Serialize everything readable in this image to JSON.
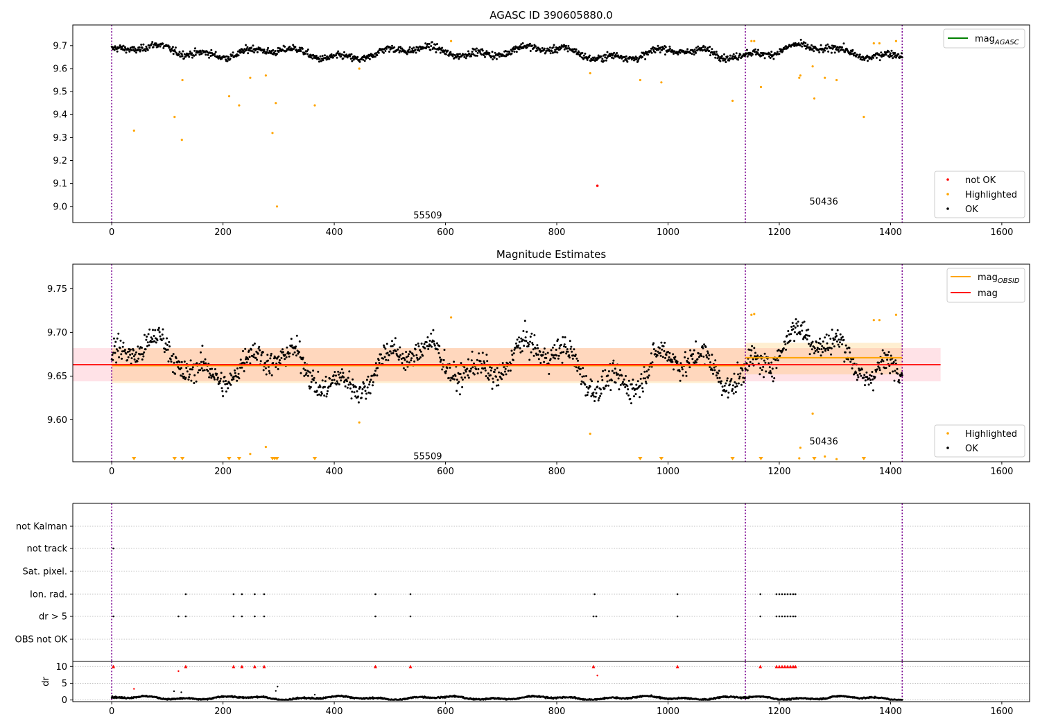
{
  "chart_data": [
    {
      "type": "scatter",
      "title": "AGASC ID 390605880.0",
      "xlim": [
        -70,
        1650
      ],
      "ylim": [
        8.93,
        9.79
      ],
      "x_ticks": [
        "0",
        "200",
        "400",
        "600",
        "800",
        "1000",
        "1200",
        "1400",
        "1600"
      ],
      "y_ticks": [
        {
          "value": 9.7,
          "label": "9.7"
        },
        {
          "value": 9.6,
          "label": "9.6"
        },
        {
          "value": 9.5,
          "label": "9.5"
        },
        {
          "value": 9.4,
          "label": "9.4"
        },
        {
          "value": 9.3,
          "label": "9.3"
        },
        {
          "value": 9.2,
          "label": "9.2"
        },
        {
          "value": 9.1,
          "label": "9.1"
        },
        {
          "value": 9.0,
          "label": "9.0"
        }
      ],
      "vlines": [
        0,
        1139,
        1421
      ],
      "annotations": [
        {
          "text": "55509",
          "x": 568,
          "y": 8.96
        },
        {
          "text": "50436",
          "x": 1280,
          "y": 9.02
        }
      ],
      "legend_top": [
        {
          "label": "mag",
          "sub": "AGASC",
          "color": "#008000"
        }
      ],
      "legend_bottom": [
        {
          "label": "not OK",
          "color": "#ff0000"
        },
        {
          "label": "Highlighted",
          "color": "#ffa500"
        },
        {
          "label": "OK",
          "color": "#000000"
        }
      ],
      "ok_base": 9.67,
      "highlighted": [
        {
          "x": 40,
          "y": 9.33
        },
        {
          "x": 113,
          "y": 9.39
        },
        {
          "x": 126,
          "y": 9.29
        },
        {
          "x": 127,
          "y": 9.55
        },
        {
          "x": 211,
          "y": 9.48
        },
        {
          "x": 229,
          "y": 9.44
        },
        {
          "x": 249,
          "y": 9.56
        },
        {
          "x": 277,
          "y": 9.57
        },
        {
          "x": 289,
          "y": 9.32
        },
        {
          "x": 295,
          "y": 9.45
        },
        {
          "x": 297,
          "y": 9.0
        },
        {
          "x": 365,
          "y": 9.44
        },
        {
          "x": 445,
          "y": 9.6
        },
        {
          "x": 610,
          "y": 9.72
        },
        {
          "x": 860,
          "y": 9.58
        },
        {
          "x": 950,
          "y": 9.55
        },
        {
          "x": 988,
          "y": 9.54
        },
        {
          "x": 1116,
          "y": 9.46
        },
        {
          "x": 1150,
          "y": 9.72
        },
        {
          "x": 1155,
          "y": 9.72
        },
        {
          "x": 1167,
          "y": 9.52
        },
        {
          "x": 1236,
          "y": 9.56
        },
        {
          "x": 1238,
          "y": 9.57
        },
        {
          "x": 1260,
          "y": 9.61
        },
        {
          "x": 1263,
          "y": 9.47
        },
        {
          "x": 1282,
          "y": 9.56
        },
        {
          "x": 1303,
          "y": 9.55
        },
        {
          "x": 1352,
          "y": 9.39
        },
        {
          "x": 1370,
          "y": 9.71
        },
        {
          "x": 1380,
          "y": 9.71
        },
        {
          "x": 1410,
          "y": 9.72
        }
      ],
      "not_ok": [
        {
          "x": 873,
          "y": 9.09
        }
      ]
    },
    {
      "type": "scatter",
      "title": "Magnitude Estimates",
      "xlim": [
        -70,
        1650
      ],
      "ylim": [
        9.552,
        9.778
      ],
      "x_ticks": [
        "0",
        "200",
        "400",
        "600",
        "800",
        "1000",
        "1200",
        "1400",
        "1600"
      ],
      "y_ticks": [
        {
          "value": 9.75,
          "label": "9.75"
        },
        {
          "value": 9.7,
          "label": "9.70"
        },
        {
          "value": 9.65,
          "label": "9.65"
        },
        {
          "value": 9.6,
          "label": "9.60"
        }
      ],
      "vlines": [
        0,
        1139,
        1421
      ],
      "annotations": [
        {
          "text": "55509",
          "x": 568,
          "y": 9.558
        },
        {
          "text": "50436",
          "x": 1280,
          "y": 9.575
        }
      ],
      "legend_top": [
        {
          "label": "mag",
          "sub": "OBSID",
          "color": "#ffa500"
        },
        {
          "label": "mag",
          "sub": "",
          "color": "#ff0000"
        }
      ],
      "legend_bottom": [
        {
          "label": "Highlighted",
          "color": "#ffa500"
        },
        {
          "label": "OK",
          "color": "#000000"
        }
      ],
      "mag": {
        "value": 9.663,
        "err_low": 9.644,
        "err_high": 9.682,
        "x_range": [
          -70,
          1490
        ]
      },
      "mag_obsid": [
        {
          "x_range": [
            0,
            1139
          ],
          "value": 9.662,
          "err_low": 9.642,
          "err_high": 9.682
        },
        {
          "x_range": [
            1139,
            1421
          ],
          "value": 9.671,
          "err_low": 9.652,
          "err_high": 9.688
        }
      ],
      "highlighted": [
        {
          "x": 445,
          "y": 9.597
        },
        {
          "x": 610,
          "y": 9.717
        },
        {
          "x": 860,
          "y": 9.584
        },
        {
          "x": 277,
          "y": 9.569
        },
        {
          "x": 249,
          "y": 9.561
        },
        {
          "x": 1150,
          "y": 9.72
        },
        {
          "x": 1155,
          "y": 9.721
        },
        {
          "x": 1260,
          "y": 9.607
        },
        {
          "x": 1238,
          "y": 9.568
        },
        {
          "x": 1236,
          "y": 9.556
        },
        {
          "x": 1282,
          "y": 9.558
        },
        {
          "x": 1303,
          "y": 9.555
        },
        {
          "x": 1370,
          "y": 9.714
        },
        {
          "x": 1380,
          "y": 9.714
        },
        {
          "x": 1410,
          "y": 9.72
        }
      ],
      "below_markers": [
        40,
        113,
        127,
        211,
        229,
        289,
        293,
        297,
        365,
        950,
        988,
        1116,
        1167,
        1263,
        1352
      ]
    },
    {
      "type": "scatter",
      "xlim": [
        -70,
        1650
      ],
      "categories": [
        "not Kalman",
        "not track",
        "Sat. pixel.",
        "Ion. rad.",
        "dr > 5",
        "OBS not OK"
      ],
      "flags": {
        "not track": [
          3
        ],
        "Ion. rad.": [
          133,
          219,
          234,
          257,
          274,
          474,
          537,
          868,
          1017,
          1166,
          1195,
          1200,
          1205,
          1210,
          1215,
          1220,
          1225,
          1229
        ],
        "dr > 5": [
          3,
          120,
          133,
          219,
          234,
          257,
          274,
          474,
          537,
          866,
          871,
          1017,
          1166,
          1195,
          1200,
          1205,
          1210,
          1215,
          1220,
          1225,
          1229
        ]
      },
      "vlines": [
        0,
        1139,
        1421
      ],
      "dr_panel": {
        "ylabel": "dr",
        "ylim": [
          -0.5,
          11.5
        ],
        "y_ticks": [
          {
            "value": 10,
            "label": "10"
          },
          {
            "value": 5,
            "label": "5"
          },
          {
            "value": 0,
            "label": "0"
          }
        ],
        "x_ticks": [
          "0",
          "200",
          "400",
          "600",
          "800",
          "1000",
          "1200",
          "1400",
          "1600"
        ],
        "clipped": [
          3,
          133,
          219,
          234,
          257,
          274,
          474,
          537,
          866,
          1017,
          1166,
          1195,
          1200,
          1205,
          1210,
          1215,
          1220,
          1225,
          1229
        ],
        "red_points": [
          {
            "x": 40,
            "y": 3.3
          },
          {
            "x": 120,
            "y": 8.6
          },
          {
            "x": 873,
            "y": 7.3
          }
        ],
        "outliers": [
          {
            "x": 112,
            "y": 2.6
          },
          {
            "x": 125,
            "y": 2.3
          },
          {
            "x": 295,
            "y": 2.7
          },
          {
            "x": 298,
            "y": 4.0
          },
          {
            "x": 365,
            "y": 1.6
          }
        ]
      }
    }
  ]
}
